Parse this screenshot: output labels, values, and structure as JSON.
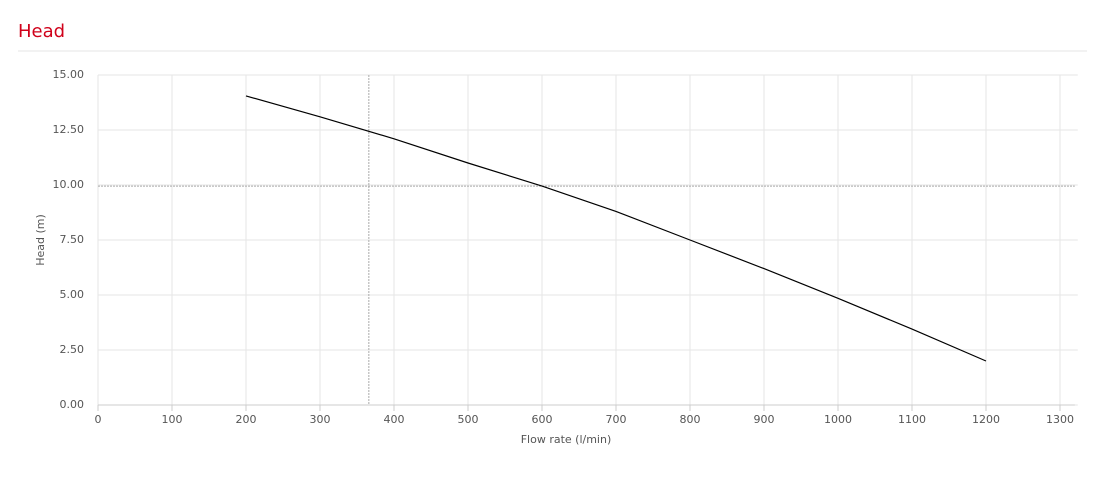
{
  "chart_data": {
    "type": "line",
    "title": "Head",
    "xlabel": "Flow rate (l/min)",
    "ylabel": "Head (m)",
    "x": [
      200,
      300,
      400,
      500,
      600,
      700,
      800,
      900,
      1000,
      1100,
      1200
    ],
    "series": [
      {
        "name": "Head",
        "color": "#000000",
        "values": [
          14.05,
          13.1,
          12.1,
          11.0,
          9.95,
          8.8,
          7.5,
          6.2,
          4.85,
          3.45,
          2.0
        ]
      }
    ],
    "xlim": [
      0,
      1320
    ],
    "xticks": [
      0,
      100,
      200,
      300,
      400,
      500,
      600,
      700,
      800,
      900,
      1000,
      1100,
      1200,
      1300
    ],
    "ylim": [
      0,
      15
    ],
    "yticks": [
      {
        "value": 0,
        "label": "0.00"
      },
      {
        "value": 2.5,
        "label": "2.50"
      },
      {
        "value": 5,
        "label": "5.00"
      },
      {
        "value": 7.5,
        "label": "7.50"
      },
      {
        "value": 10,
        "label": "10.00"
      },
      {
        "value": 12.5,
        "label": "12.50"
      },
      {
        "value": 15,
        "label": "15.00"
      }
    ],
    "grid": true,
    "crosshair": {
      "x": 366,
      "y": 9.95
    }
  }
}
